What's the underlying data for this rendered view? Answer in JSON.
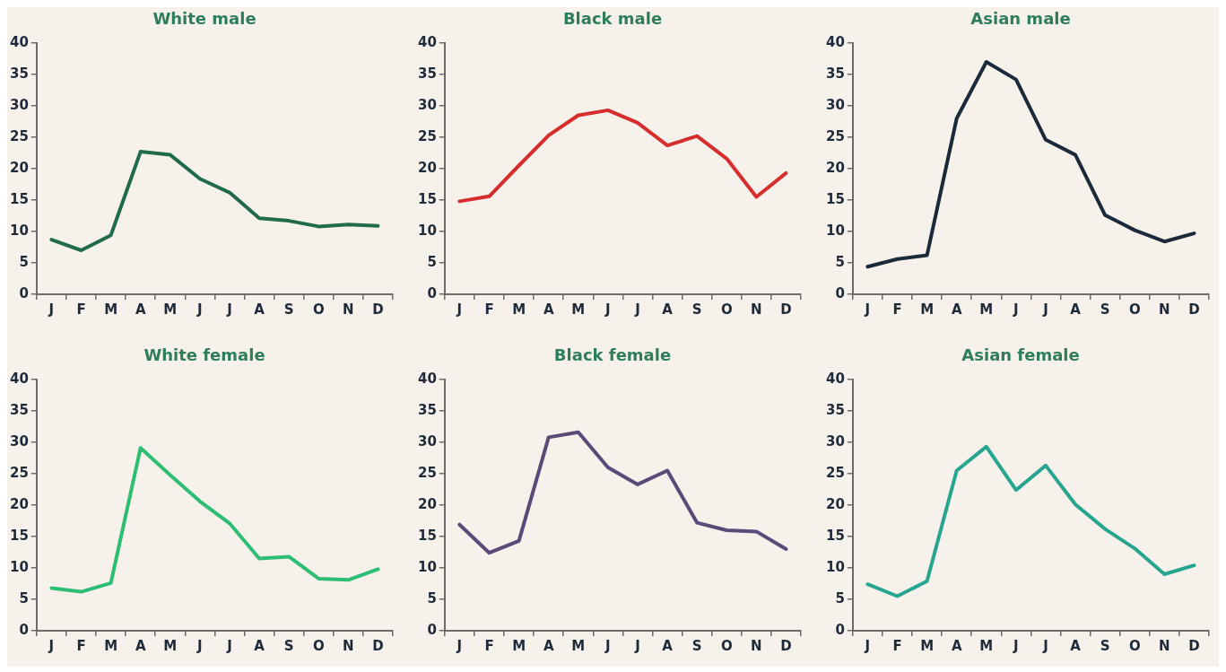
{
  "chart_data": [
    {
      "type": "line",
      "title": "White male",
      "categories": [
        "J",
        "F",
        "M",
        "A",
        "M",
        "J",
        "J",
        "A",
        "S",
        "O",
        "N",
        "D"
      ],
      "series": [
        {
          "color": "#1f6b4a",
          "values": [
            8.7,
            7.0,
            9.4,
            22.7,
            22.2,
            18.4,
            16.2,
            12.1,
            11.7,
            10.8,
            11.1,
            10.9
          ]
        }
      ],
      "ylim": [
        0,
        40
      ],
      "yticks": [
        0,
        5,
        10,
        15,
        20,
        25,
        30,
        35,
        40
      ],
      "grid": false,
      "legend": false,
      "marker": "none"
    },
    {
      "type": "line",
      "title": "Black male",
      "categories": [
        "J",
        "F",
        "M",
        "A",
        "M",
        "J",
        "J",
        "A",
        "S",
        "O",
        "N",
        "D"
      ],
      "series": [
        {
          "color": "#d62d2d",
          "values": [
            14.8,
            15.6,
            20.5,
            25.3,
            28.5,
            29.3,
            27.3,
            23.7,
            25.2,
            21.6,
            15.5,
            19.3
          ]
        }
      ],
      "ylim": [
        0,
        40
      ],
      "yticks": [
        0,
        5,
        10,
        15,
        20,
        25,
        30,
        35,
        40
      ],
      "grid": false,
      "legend": false,
      "marker": "none"
    },
    {
      "type": "line",
      "title": "Asian male",
      "categories": [
        "J",
        "F",
        "M",
        "A",
        "M",
        "J",
        "J",
        "A",
        "S",
        "O",
        "N",
        "D"
      ],
      "series": [
        {
          "color": "#1b2a3a",
          "values": [
            4.4,
            5.6,
            6.2,
            28,
            37,
            34.2,
            24.6,
            22.2,
            12.6,
            10.2,
            8.4,
            9.7
          ]
        }
      ],
      "ylim": [
        0,
        40
      ],
      "yticks": [
        0,
        5,
        10,
        15,
        20,
        25,
        30,
        35,
        40
      ],
      "grid": false,
      "legend": false,
      "marker": "none"
    },
    {
      "type": "line",
      "title": "White female",
      "categories": [
        "J",
        "F",
        "M",
        "A",
        "M",
        "J",
        "J",
        "A",
        "S",
        "O",
        "N",
        "D"
      ],
      "series": [
        {
          "color": "#2dbd73",
          "values": [
            6.8,
            6.2,
            7.6,
            29.1,
            24.8,
            20.6,
            17.1,
            11.5,
            11.8,
            8.3,
            8.1,
            9.8
          ]
        }
      ],
      "ylim": [
        0,
        40
      ],
      "yticks": [
        0,
        5,
        10,
        15,
        20,
        25,
        30,
        35,
        40
      ],
      "grid": false,
      "legend": false,
      "marker": "none"
    },
    {
      "type": "line",
      "title": "Black female",
      "categories": [
        "J",
        "F",
        "M",
        "A",
        "M",
        "J",
        "J",
        "A",
        "S",
        "O",
        "N",
        "D"
      ],
      "series": [
        {
          "color": "#5b4a78",
          "values": [
            16.9,
            12.4,
            14.3,
            30.8,
            31.6,
            26,
            23.3,
            25.5,
            17.2,
            16,
            15.8,
            13
          ]
        }
      ],
      "ylim": [
        0,
        40
      ],
      "yticks": [
        0,
        5,
        10,
        15,
        20,
        25,
        30,
        35,
        40
      ],
      "grid": false,
      "legend": false,
      "marker": "none"
    },
    {
      "type": "line",
      "title": "Asian female",
      "categories": [
        "J",
        "F",
        "M",
        "A",
        "M",
        "J",
        "J",
        "A",
        "S",
        "O",
        "N",
        "D"
      ],
      "series": [
        {
          "color": "#26a58f",
          "values": [
            7.4,
            5.5,
            7.9,
            25.5,
            29.3,
            22.4,
            26.3,
            20.1,
            16.2,
            13.1,
            9.0,
            10.4
          ]
        }
      ],
      "ylim": [
        0,
        40
      ],
      "yticks": [
        0,
        5,
        10,
        15,
        20,
        25,
        30,
        35,
        40
      ],
      "grid": false,
      "legend": false,
      "marker": "none"
    }
  ]
}
